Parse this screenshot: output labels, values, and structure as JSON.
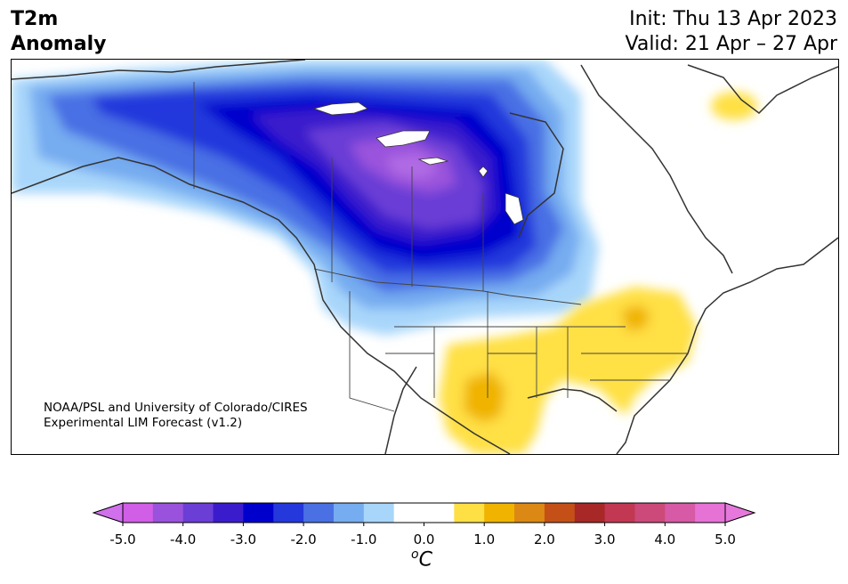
{
  "header": {
    "title_line1": "T2m",
    "title_line2": "Anomaly",
    "init": "Init: Thu 13 Apr 2023",
    "valid": "Valid: 21 Apr – 27 Apr"
  },
  "map": {
    "region": "North America",
    "credit_line1": "NOAA/PSL and University of Colorado/CIRES",
    "credit_line2": "Experimental LIM Forecast (v1.2)"
  },
  "colorbar": {
    "unit": "C",
    "ticks": [
      "-5.0",
      "-4.0",
      "-3.0",
      "-2.0",
      "-1.0",
      "0.0",
      "1.0",
      "2.0",
      "3.0",
      "4.0",
      "5.0"
    ],
    "colors": [
      "#d05ee6",
      "#9a52dc",
      "#6b3ed6",
      "#3b1ccc",
      "#0000cd",
      "#2438dc",
      "#4a70e4",
      "#76acf0",
      "#a8d6fa",
      "#ffffff",
      "#ffffff",
      "#ffe044",
      "#f0b400",
      "#dc8814",
      "#c45018",
      "#a82828",
      "#c23852",
      "#cc4a7a",
      "#d65aa6",
      "#e672d6"
    ],
    "under_color": "#d070ec",
    "over_color": "#e678dc"
  }
}
